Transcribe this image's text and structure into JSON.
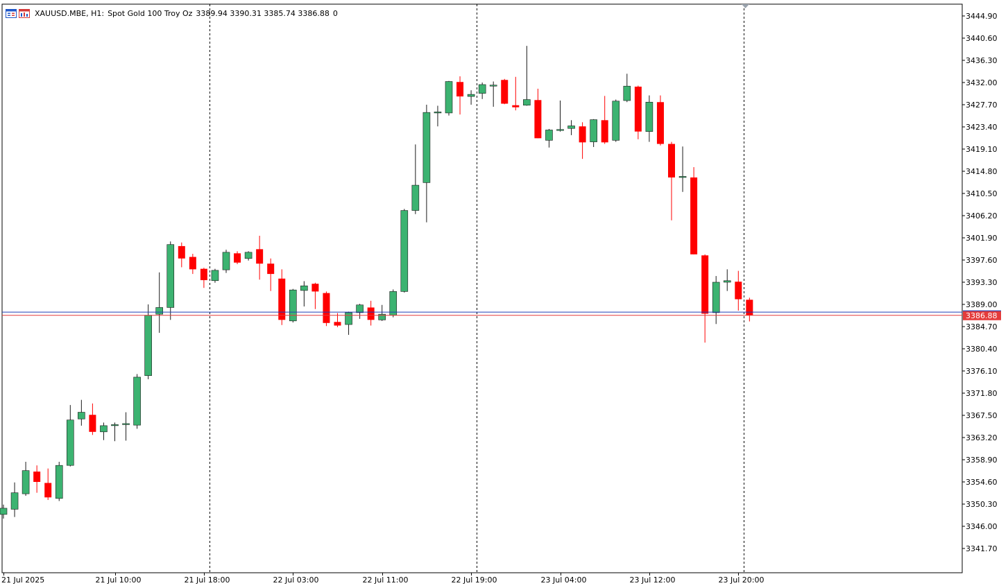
{
  "header": {
    "symbol_timeframe": "XAUUSD.MBE, H1:",
    "description": "Spot Gold 100 Troy Oz",
    "ohlc": "3389.94 3390.31 3385.74 3386.88",
    "volume": "0",
    "icons": [
      "chart-window-icon",
      "trading-window-icon"
    ]
  },
  "chart_data": {
    "type": "candlestick",
    "timeframe": "H1",
    "x_tick_labels": [
      "21 Jul 2025",
      "21 Jul 10:00",
      "21 Jul 18:00",
      "22 Jul 03:00",
      "22 Jul 11:00",
      "22 Jul 19:00",
      "23 Jul 04:00",
      "23 Jul 12:00",
      "23 Jul 20:00"
    ],
    "y_tick_labels": [
      "3444.90",
      "3440.60",
      "3436.30",
      "3432.00",
      "3427.70",
      "3423.40",
      "3419.10",
      "3414.80",
      "3410.50",
      "3406.20",
      "3401.90",
      "3397.60",
      "3393.30",
      "3389.00",
      "3384.70",
      "3380.40",
      "3376.10",
      "3371.80",
      "3367.50",
      "3363.20",
      "3358.90",
      "3354.60",
      "3350.30",
      "3346.00",
      "3341.70"
    ],
    "ylim": [
      3338.0,
      3446.9
    ],
    "grid": false,
    "period_separators": [
      "21 Jul 18:00",
      "22 Jul 19:00",
      "23 Jul 20:00"
    ],
    "bid_price": 3386.88,
    "bid_label": "3386.88",
    "ask_price": 3387.5,
    "colors": {
      "bull": "#3cb371",
      "bear": "#ff0000",
      "bid_line": "#e43b3b",
      "ask_line": "#1f3fb8",
      "separator": "#000000",
      "axis": "#000000"
    },
    "candles": [
      {
        "o": 3348.3,
        "h": 3350.2,
        "l": 3347.5,
        "c": 3349.5
      },
      {
        "o": 3349.3,
        "h": 3354.5,
        "l": 3347.8,
        "c": 3352.5
      },
      {
        "o": 3352.3,
        "h": 3358.5,
        "l": 3351.9,
        "c": 3356.8
      },
      {
        "o": 3356.6,
        "h": 3357.8,
        "l": 3352.5,
        "c": 3354.6
      },
      {
        "o": 3354.4,
        "h": 3357.2,
        "l": 3351.1,
        "c": 3351.6
      },
      {
        "o": 3351.4,
        "h": 3358.5,
        "l": 3350.9,
        "c": 3357.8
      },
      {
        "o": 3357.8,
        "h": 3369.5,
        "l": 3357.6,
        "c": 3366.6
      },
      {
        "o": 3366.8,
        "h": 3370.5,
        "l": 3365.5,
        "c": 3368.1
      },
      {
        "o": 3367.6,
        "h": 3369.8,
        "l": 3363.7,
        "c": 3364.3
      },
      {
        "o": 3364.3,
        "h": 3366.1,
        "l": 3362.7,
        "c": 3365.5
      },
      {
        "o": 3365.5,
        "h": 3366.1,
        "l": 3362.5,
        "c": 3365.7
      },
      {
        "o": 3365.7,
        "h": 3368.1,
        "l": 3362.6,
        "c": 3365.9
      },
      {
        "o": 3365.6,
        "h": 3375.5,
        "l": 3364.9,
        "c": 3374.9
      },
      {
        "o": 3375.2,
        "h": 3389.0,
        "l": 3374.5,
        "c": 3386.9
      },
      {
        "o": 3387.1,
        "h": 3395.2,
        "l": 3383.5,
        "c": 3388.4
      },
      {
        "o": 3388.4,
        "h": 3401.2,
        "l": 3386.0,
        "c": 3400.6
      },
      {
        "o": 3400.3,
        "h": 3401.0,
        "l": 3396.2,
        "c": 3397.9
      },
      {
        "o": 3398.2,
        "h": 3398.8,
        "l": 3394.9,
        "c": 3395.8
      },
      {
        "o": 3395.9,
        "h": 3396.1,
        "l": 3392.2,
        "c": 3393.7
      },
      {
        "o": 3393.6,
        "h": 3395.9,
        "l": 3393.2,
        "c": 3395.6
      },
      {
        "o": 3395.7,
        "h": 3399.6,
        "l": 3395.1,
        "c": 3399.1
      },
      {
        "o": 3398.9,
        "h": 3399.3,
        "l": 3396.8,
        "c": 3397.1
      },
      {
        "o": 3397.9,
        "h": 3399.3,
        "l": 3397.5,
        "c": 3399.1
      },
      {
        "o": 3399.7,
        "h": 3402.3,
        "l": 3393.8,
        "c": 3396.9
      },
      {
        "o": 3396.9,
        "h": 3397.9,
        "l": 3391.6,
        "c": 3394.9
      },
      {
        "o": 3394.0,
        "h": 3395.8,
        "l": 3385.0,
        "c": 3386.0
      },
      {
        "o": 3385.8,
        "h": 3392.0,
        "l": 3385.5,
        "c": 3391.8
      },
      {
        "o": 3391.7,
        "h": 3393.5,
        "l": 3388.6,
        "c": 3392.6
      },
      {
        "o": 3393.0,
        "h": 3393.2,
        "l": 3388.1,
        "c": 3391.5
      },
      {
        "o": 3391.2,
        "h": 3391.5,
        "l": 3384.8,
        "c": 3385.4
      },
      {
        "o": 3385.6,
        "h": 3387.3,
        "l": 3384.6,
        "c": 3384.9
      },
      {
        "o": 3385.1,
        "h": 3387.6,
        "l": 3383.1,
        "c": 3387.4
      },
      {
        "o": 3387.4,
        "h": 3389.1,
        "l": 3386.2,
        "c": 3388.9
      },
      {
        "o": 3388.4,
        "h": 3389.7,
        "l": 3384.9,
        "c": 3386.0
      },
      {
        "o": 3386.0,
        "h": 3388.9,
        "l": 3385.8,
        "c": 3387.1
      },
      {
        "o": 3386.9,
        "h": 3391.9,
        "l": 3386.5,
        "c": 3391.5
      },
      {
        "o": 3391.5,
        "h": 3407.5,
        "l": 3391.3,
        "c": 3407.2
      },
      {
        "o": 3407.2,
        "h": 3420.0,
        "l": 3406.5,
        "c": 3412.1
      },
      {
        "o": 3412.6,
        "h": 3427.7,
        "l": 3404.9,
        "c": 3426.2
      },
      {
        "o": 3426.1,
        "h": 3427.5,
        "l": 3423.5,
        "c": 3426.3
      },
      {
        "o": 3426.1,
        "h": 3432.3,
        "l": 3425.6,
        "c": 3432.2
      },
      {
        "o": 3432.1,
        "h": 3433.2,
        "l": 3425.8,
        "c": 3429.3
      },
      {
        "o": 3429.3,
        "h": 3430.5,
        "l": 3427.7,
        "c": 3429.7
      },
      {
        "o": 3429.9,
        "h": 3432.0,
        "l": 3428.8,
        "c": 3431.6
      },
      {
        "o": 3431.4,
        "h": 3432.2,
        "l": 3427.3,
        "c": 3431.5
      },
      {
        "o": 3432.5,
        "h": 3432.7,
        "l": 3427.8,
        "c": 3427.9
      },
      {
        "o": 3427.6,
        "h": 3433.1,
        "l": 3426.6,
        "c": 3427.2
      },
      {
        "o": 3427.6,
        "h": 3439.1,
        "l": 3427.5,
        "c": 3428.7
      },
      {
        "o": 3428.6,
        "h": 3430.8,
        "l": 3421.2,
        "c": 3421.2
      },
      {
        "o": 3420.8,
        "h": 3423.0,
        "l": 3419.4,
        "c": 3422.8
      },
      {
        "o": 3422.7,
        "h": 3428.5,
        "l": 3422.5,
        "c": 3422.9
      },
      {
        "o": 3423.1,
        "h": 3424.7,
        "l": 3421.8,
        "c": 3423.6
      },
      {
        "o": 3423.5,
        "h": 3424.3,
        "l": 3417.2,
        "c": 3420.4
      },
      {
        "o": 3420.5,
        "h": 3424.9,
        "l": 3419.5,
        "c": 3424.8
      },
      {
        "o": 3424.7,
        "h": 3429.4,
        "l": 3420.1,
        "c": 3420.4
      },
      {
        "o": 3420.8,
        "h": 3428.7,
        "l": 3420.5,
        "c": 3428.4
      },
      {
        "o": 3428.5,
        "h": 3433.7,
        "l": 3428.2,
        "c": 3431.3
      },
      {
        "o": 3431.2,
        "h": 3431.4,
        "l": 3421.0,
        "c": 3422.5
      },
      {
        "o": 3422.5,
        "h": 3429.5,
        "l": 3420.5,
        "c": 3428.2
      },
      {
        "o": 3428.2,
        "h": 3429.5,
        "l": 3419.8,
        "c": 3420.1
      },
      {
        "o": 3420.1,
        "h": 3420.5,
        "l": 3405.3,
        "c": 3413.6
      },
      {
        "o": 3413.8,
        "h": 3419.6,
        "l": 3410.8,
        "c": 3413.8
      },
      {
        "o": 3413.6,
        "h": 3415.6,
        "l": 3398.7,
        "c": 3398.7
      },
      {
        "o": 3398.5,
        "h": 3398.7,
        "l": 3381.6,
        "c": 3387.2
      },
      {
        "o": 3387.4,
        "h": 3394.5,
        "l": 3385.2,
        "c": 3393.3
      },
      {
        "o": 3393.3,
        "h": 3395.8,
        "l": 3391.6,
        "c": 3393.6
      },
      {
        "o": 3393.4,
        "h": 3395.5,
        "l": 3387.8,
        "c": 3390.0
      },
      {
        "o": 3389.9,
        "h": 3390.3,
        "l": 3385.7,
        "c": 3386.9
      }
    ]
  }
}
